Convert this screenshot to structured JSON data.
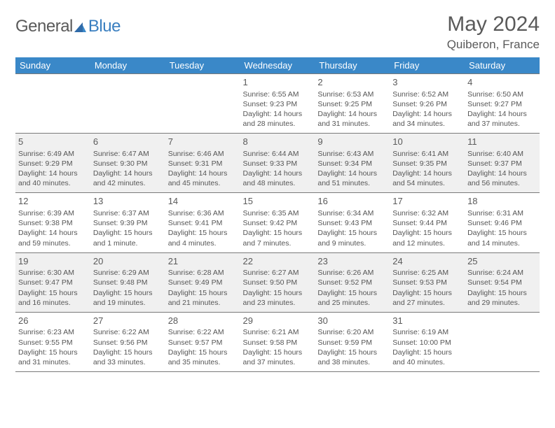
{
  "brand": {
    "part1": "General",
    "part2": "Blue"
  },
  "title": "May 2024",
  "location": "Quiberon, France",
  "colors": {
    "header_bg": "#3a88c8",
    "header_text": "#ffffff",
    "cell_alt_bg": "#f0f0f0",
    "text": "#565656",
    "border": "#7a7a7a",
    "logo_blue": "#3a7fc0"
  },
  "weekdays": [
    "Sunday",
    "Monday",
    "Tuesday",
    "Wednesday",
    "Thursday",
    "Friday",
    "Saturday"
  ],
  "weeks": [
    [
      null,
      null,
      null,
      {
        "n": "1",
        "sr": "Sunrise: 6:55 AM",
        "ss": "Sunset: 9:23 PM",
        "d1": "Daylight: 14 hours",
        "d2": "and 28 minutes."
      },
      {
        "n": "2",
        "sr": "Sunrise: 6:53 AM",
        "ss": "Sunset: 9:25 PM",
        "d1": "Daylight: 14 hours",
        "d2": "and 31 minutes."
      },
      {
        "n": "3",
        "sr": "Sunrise: 6:52 AM",
        "ss": "Sunset: 9:26 PM",
        "d1": "Daylight: 14 hours",
        "d2": "and 34 minutes."
      },
      {
        "n": "4",
        "sr": "Sunrise: 6:50 AM",
        "ss": "Sunset: 9:27 PM",
        "d1": "Daylight: 14 hours",
        "d2": "and 37 minutes."
      }
    ],
    [
      {
        "n": "5",
        "sr": "Sunrise: 6:49 AM",
        "ss": "Sunset: 9:29 PM",
        "d1": "Daylight: 14 hours",
        "d2": "and 40 minutes."
      },
      {
        "n": "6",
        "sr": "Sunrise: 6:47 AM",
        "ss": "Sunset: 9:30 PM",
        "d1": "Daylight: 14 hours",
        "d2": "and 42 minutes."
      },
      {
        "n": "7",
        "sr": "Sunrise: 6:46 AM",
        "ss": "Sunset: 9:31 PM",
        "d1": "Daylight: 14 hours",
        "d2": "and 45 minutes."
      },
      {
        "n": "8",
        "sr": "Sunrise: 6:44 AM",
        "ss": "Sunset: 9:33 PM",
        "d1": "Daylight: 14 hours",
        "d2": "and 48 minutes."
      },
      {
        "n": "9",
        "sr": "Sunrise: 6:43 AM",
        "ss": "Sunset: 9:34 PM",
        "d1": "Daylight: 14 hours",
        "d2": "and 51 minutes."
      },
      {
        "n": "10",
        "sr": "Sunrise: 6:41 AM",
        "ss": "Sunset: 9:35 PM",
        "d1": "Daylight: 14 hours",
        "d2": "and 54 minutes."
      },
      {
        "n": "11",
        "sr": "Sunrise: 6:40 AM",
        "ss": "Sunset: 9:37 PM",
        "d1": "Daylight: 14 hours",
        "d2": "and 56 minutes."
      }
    ],
    [
      {
        "n": "12",
        "sr": "Sunrise: 6:39 AM",
        "ss": "Sunset: 9:38 PM",
        "d1": "Daylight: 14 hours",
        "d2": "and 59 minutes."
      },
      {
        "n": "13",
        "sr": "Sunrise: 6:37 AM",
        "ss": "Sunset: 9:39 PM",
        "d1": "Daylight: 15 hours",
        "d2": "and 1 minute."
      },
      {
        "n": "14",
        "sr": "Sunrise: 6:36 AM",
        "ss": "Sunset: 9:41 PM",
        "d1": "Daylight: 15 hours",
        "d2": "and 4 minutes."
      },
      {
        "n": "15",
        "sr": "Sunrise: 6:35 AM",
        "ss": "Sunset: 9:42 PM",
        "d1": "Daylight: 15 hours",
        "d2": "and 7 minutes."
      },
      {
        "n": "16",
        "sr": "Sunrise: 6:34 AM",
        "ss": "Sunset: 9:43 PM",
        "d1": "Daylight: 15 hours",
        "d2": "and 9 minutes."
      },
      {
        "n": "17",
        "sr": "Sunrise: 6:32 AM",
        "ss": "Sunset: 9:44 PM",
        "d1": "Daylight: 15 hours",
        "d2": "and 12 minutes."
      },
      {
        "n": "18",
        "sr": "Sunrise: 6:31 AM",
        "ss": "Sunset: 9:46 PM",
        "d1": "Daylight: 15 hours",
        "d2": "and 14 minutes."
      }
    ],
    [
      {
        "n": "19",
        "sr": "Sunrise: 6:30 AM",
        "ss": "Sunset: 9:47 PM",
        "d1": "Daylight: 15 hours",
        "d2": "and 16 minutes."
      },
      {
        "n": "20",
        "sr": "Sunrise: 6:29 AM",
        "ss": "Sunset: 9:48 PM",
        "d1": "Daylight: 15 hours",
        "d2": "and 19 minutes."
      },
      {
        "n": "21",
        "sr": "Sunrise: 6:28 AM",
        "ss": "Sunset: 9:49 PM",
        "d1": "Daylight: 15 hours",
        "d2": "and 21 minutes."
      },
      {
        "n": "22",
        "sr": "Sunrise: 6:27 AM",
        "ss": "Sunset: 9:50 PM",
        "d1": "Daylight: 15 hours",
        "d2": "and 23 minutes."
      },
      {
        "n": "23",
        "sr": "Sunrise: 6:26 AM",
        "ss": "Sunset: 9:52 PM",
        "d1": "Daylight: 15 hours",
        "d2": "and 25 minutes."
      },
      {
        "n": "24",
        "sr": "Sunrise: 6:25 AM",
        "ss": "Sunset: 9:53 PM",
        "d1": "Daylight: 15 hours",
        "d2": "and 27 minutes."
      },
      {
        "n": "25",
        "sr": "Sunrise: 6:24 AM",
        "ss": "Sunset: 9:54 PM",
        "d1": "Daylight: 15 hours",
        "d2": "and 29 minutes."
      }
    ],
    [
      {
        "n": "26",
        "sr": "Sunrise: 6:23 AM",
        "ss": "Sunset: 9:55 PM",
        "d1": "Daylight: 15 hours",
        "d2": "and 31 minutes."
      },
      {
        "n": "27",
        "sr": "Sunrise: 6:22 AM",
        "ss": "Sunset: 9:56 PM",
        "d1": "Daylight: 15 hours",
        "d2": "and 33 minutes."
      },
      {
        "n": "28",
        "sr": "Sunrise: 6:22 AM",
        "ss": "Sunset: 9:57 PM",
        "d1": "Daylight: 15 hours",
        "d2": "and 35 minutes."
      },
      {
        "n": "29",
        "sr": "Sunrise: 6:21 AM",
        "ss": "Sunset: 9:58 PM",
        "d1": "Daylight: 15 hours",
        "d2": "and 37 minutes."
      },
      {
        "n": "30",
        "sr": "Sunrise: 6:20 AM",
        "ss": "Sunset: 9:59 PM",
        "d1": "Daylight: 15 hours",
        "d2": "and 38 minutes."
      },
      {
        "n": "31",
        "sr": "Sunrise: 6:19 AM",
        "ss": "Sunset: 10:00 PM",
        "d1": "Daylight: 15 hours",
        "d2": "and 40 minutes."
      },
      null
    ]
  ]
}
